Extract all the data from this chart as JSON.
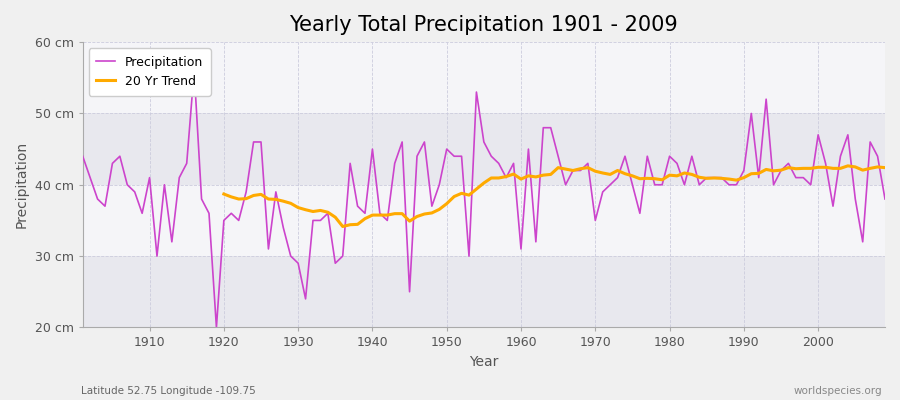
{
  "title": "Yearly Total Precipitation 1901 - 2009",
  "ylabel": "Precipitation",
  "xlabel": "Year",
  "bottom_left_label": "Latitude 52.75 Longitude -109.75",
  "bottom_right_label": "worldspecies.org",
  "ylim": [
    20,
    60
  ],
  "yticks": [
    20,
    30,
    40,
    50,
    60
  ],
  "ytick_labels": [
    "20 cm",
    "30 cm",
    "40 cm",
    "50 cm",
    "60 cm"
  ],
  "xlim": [
    1901,
    2009
  ],
  "xticks": [
    1910,
    1920,
    1930,
    1940,
    1950,
    1960,
    1970,
    1980,
    1990,
    2000
  ],
  "precip_color": "#cc44cc",
  "trend_color": "#ffaa00",
  "fig_bg_color": "#f0f0f0",
  "plot_bg_light": "#f5f5f8",
  "plot_bg_dark": "#e8e8ee",
  "grid_color": "#ccccdd",
  "title_fontsize": 15,
  "legend_fontsize": 9,
  "axis_label_fontsize": 10,
  "tick_fontsize": 9,
  "years": [
    1901,
    1902,
    1903,
    1904,
    1905,
    1906,
    1907,
    1908,
    1909,
    1910,
    1911,
    1912,
    1913,
    1914,
    1915,
    1916,
    1917,
    1918,
    1919,
    1920,
    1921,
    1922,
    1923,
    1924,
    1925,
    1926,
    1927,
    1928,
    1929,
    1930,
    1931,
    1932,
    1933,
    1934,
    1935,
    1936,
    1937,
    1938,
    1939,
    1940,
    1941,
    1942,
    1943,
    1944,
    1945,
    1946,
    1947,
    1948,
    1949,
    1950,
    1951,
    1952,
    1953,
    1954,
    1955,
    1956,
    1957,
    1958,
    1959,
    1960,
    1961,
    1962,
    1963,
    1964,
    1965,
    1966,
    1967,
    1968,
    1969,
    1970,
    1971,
    1972,
    1973,
    1974,
    1975,
    1976,
    1977,
    1978,
    1979,
    1980,
    1981,
    1982,
    1983,
    1984,
    1985,
    1986,
    1987,
    1988,
    1989,
    1990,
    1991,
    1992,
    1993,
    1994,
    1995,
    1996,
    1997,
    1998,
    1999,
    2000,
    2001,
    2002,
    2003,
    2004,
    2005,
    2006,
    2007,
    2008,
    2009
  ],
  "precip": [
    44,
    41,
    38,
    37,
    43,
    44,
    40,
    39,
    36,
    41,
    30,
    40,
    32,
    41,
    43,
    56,
    38,
    36,
    20,
    35,
    36,
    35,
    39,
    46,
    46,
    31,
    39,
    34,
    30,
    29,
    24,
    35,
    35,
    36,
    29,
    30,
    43,
    37,
    36,
    45,
    36,
    35,
    43,
    46,
    25,
    44,
    46,
    37,
    40,
    45,
    44,
    44,
    30,
    53,
    46,
    44,
    43,
    41,
    43,
    31,
    45,
    32,
    48,
    48,
    44,
    40,
    42,
    42,
    43,
    35,
    39,
    40,
    41,
    44,
    40,
    36,
    44,
    40,
    40,
    44,
    43,
    40,
    44,
    40,
    41,
    41,
    41,
    40,
    40,
    42,
    50,
    41,
    52,
    40,
    42,
    43,
    41,
    41,
    40,
    47,
    43,
    37,
    44,
    47,
    38,
    32,
    46,
    44,
    38
  ]
}
